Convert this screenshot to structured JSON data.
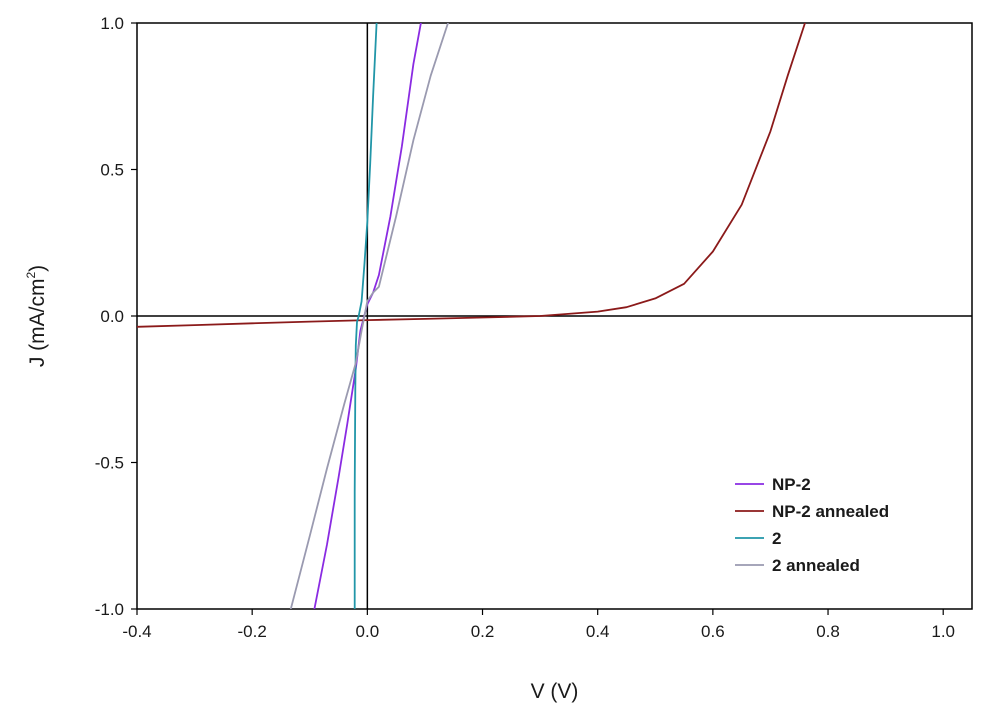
{
  "chart_data": {
    "type": "line",
    "xlabel": "V (V)",
    "ylabel": "J (mA/cm²)",
    "ylabel_parts": {
      "base": "J (mA/cm",
      "sup": "2",
      "close": ")"
    },
    "xlim": [
      -0.4,
      1.05
    ],
    "ylim": [
      -1.0,
      1.0
    ],
    "x_ticks": [
      -0.4,
      -0.2,
      0.0,
      0.2,
      0.4,
      0.6,
      0.8,
      1.0
    ],
    "x_tick_labels": [
      "-0.4",
      "-0.2",
      "0.0",
      "0.2",
      "0.4",
      "0.6",
      "0.8",
      "1.0"
    ],
    "y_ticks": [
      -1.0,
      -0.5,
      0.0,
      0.5,
      1.0
    ],
    "y_tick_labels": [
      "-1.0",
      "-0.5",
      "0.0",
      "0.5",
      "1.0"
    ],
    "grid": false,
    "reference_lines": {
      "x": 0,
      "y": 0
    },
    "legend_position": "bottom-right",
    "series": [
      {
        "name": "NP-2",
        "color": "#8a2be2",
        "x": [
          -0.092,
          -0.07,
          -0.05,
          -0.035,
          -0.02,
          -0.012,
          0.0,
          0.01,
          0.02,
          0.04,
          0.06,
          0.08,
          0.093
        ],
        "y": [
          -1.0,
          -0.78,
          -0.55,
          -0.37,
          -0.18,
          -0.05,
          0.04,
          0.08,
          0.14,
          0.34,
          0.58,
          0.86,
          1.0
        ]
      },
      {
        "name": "NP-2 annealed",
        "color": "#8b1a1a",
        "x": [
          -0.4,
          -0.3,
          -0.2,
          -0.1,
          0.0,
          0.1,
          0.2,
          0.3,
          0.4,
          0.45,
          0.5,
          0.55,
          0.6,
          0.65,
          0.7,
          0.73,
          0.76
        ],
        "y": [
          -0.037,
          -0.031,
          -0.025,
          -0.019,
          -0.014,
          -0.01,
          -0.005,
          0.0,
          0.015,
          0.03,
          0.06,
          0.11,
          0.22,
          0.38,
          0.63,
          0.82,
          1.0
        ]
      },
      {
        "name": "2",
        "color": "#2196a8",
        "x": [
          -0.022,
          -0.022,
          -0.021,
          -0.02,
          -0.018,
          -0.015,
          -0.01,
          -0.005,
          0.0,
          0.005,
          0.01,
          0.016
        ],
        "y": [
          -1.0,
          -0.6,
          -0.25,
          -0.1,
          -0.02,
          0.0,
          0.05,
          0.18,
          0.32,
          0.52,
          0.75,
          1.0
        ]
      },
      {
        "name": "2 annealed",
        "color": "#9a9ab0",
        "x": [
          -0.133,
          -0.1,
          -0.07,
          -0.04,
          -0.02,
          -0.01,
          0.0,
          0.01,
          0.02,
          0.05,
          0.08,
          0.11,
          0.14
        ],
        "y": [
          -1.0,
          -0.75,
          -0.52,
          -0.3,
          -0.16,
          -0.05,
          0.05,
          0.08,
          0.1,
          0.34,
          0.6,
          0.82,
          1.0
        ]
      }
    ]
  }
}
